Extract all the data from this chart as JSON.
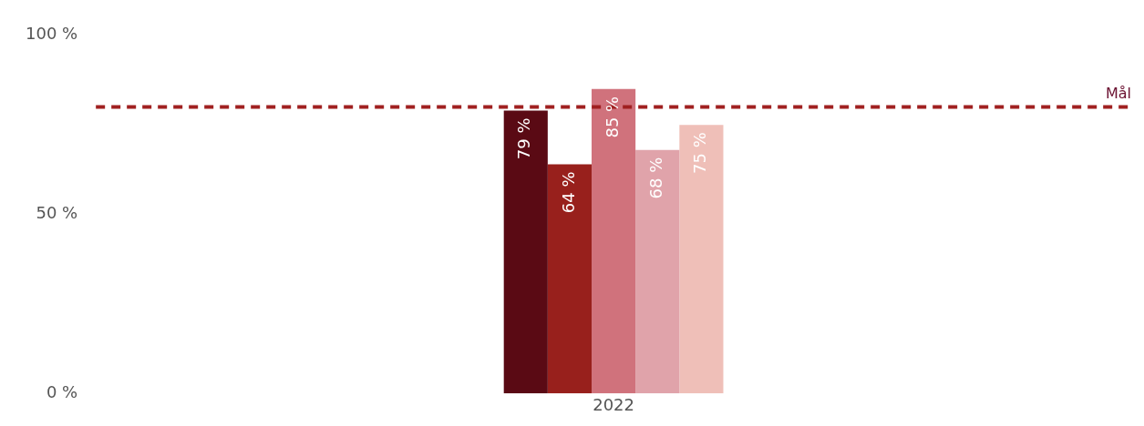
{
  "chart_data": {
    "type": "bar",
    "categories": [
      "2022"
    ],
    "series": [
      {
        "color": "#5a0a14",
        "values": [
          79
        ],
        "value_labels": [
          "79 %"
        ]
      },
      {
        "color": "#98201c",
        "values": [
          64
        ],
        "value_labels": [
          "64 %"
        ]
      },
      {
        "color": "#d0727c",
        "values": [
          85
        ],
        "value_labels": [
          "85 %"
        ]
      },
      {
        "color": "#e0a3aa",
        "values": [
          68
        ],
        "value_labels": [
          "68 %"
        ]
      },
      {
        "color": "#efbfb8",
        "values": [
          75
        ],
        "value_labels": [
          "75 %"
        ]
      }
    ],
    "ylim": [
      0,
      100
    ],
    "yticks": [
      {
        "value": 0,
        "label": "0 %"
      },
      {
        "value": 50,
        "label": "50 %"
      },
      {
        "value": 100,
        "label": "100 %"
      }
    ],
    "ref_lines": [
      {
        "axis": "y",
        "value": 80,
        "label": "Mål",
        "color": "#a02020",
        "line_style": "dashed"
      }
    ],
    "grid": false,
    "legend": false
  }
}
